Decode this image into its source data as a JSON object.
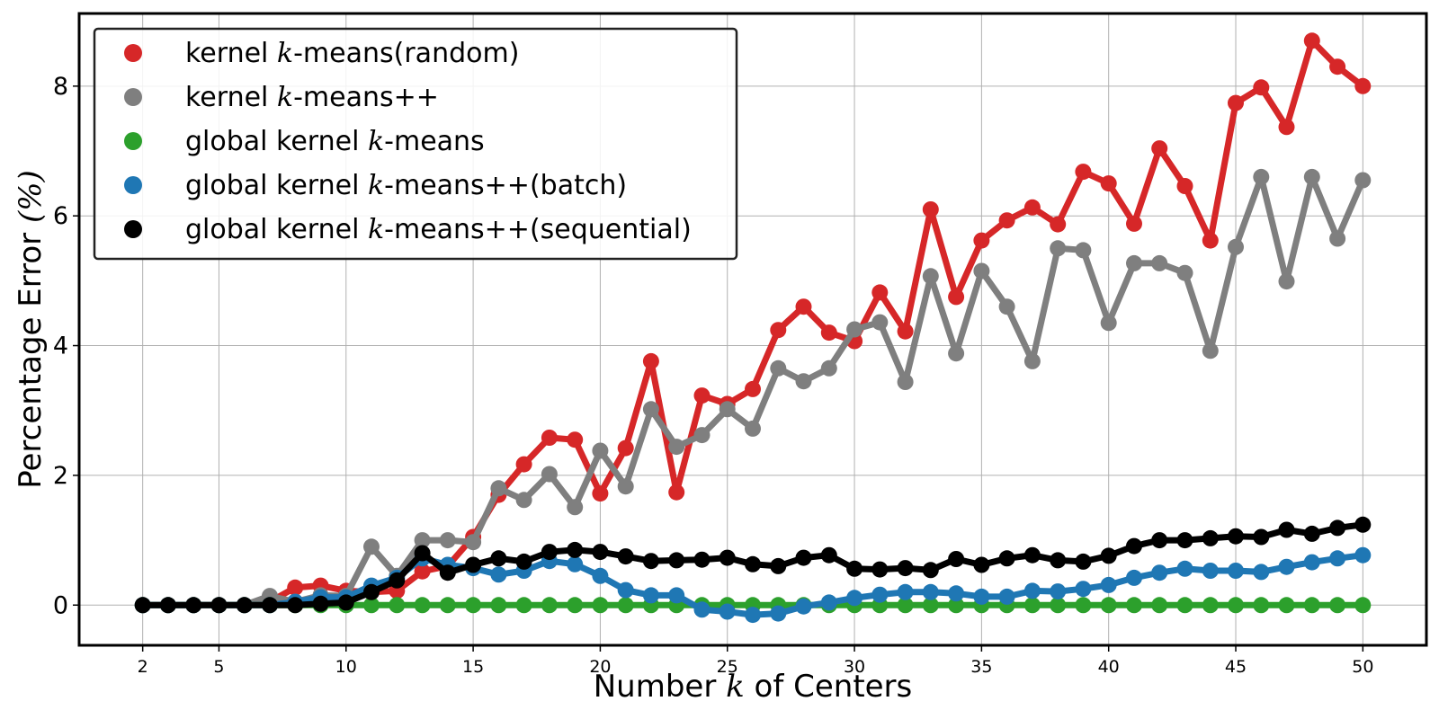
{
  "chart_data": {
    "type": "line",
    "xlabel": "Number k of Centers",
    "ylabel": "Percentage Error (%)",
    "xlim": [
      -0.5,
      52.5
    ],
    "ylim": [
      -0.62,
      9.12
    ],
    "xticks": [
      2,
      5,
      10,
      15,
      20,
      25,
      30,
      35,
      40,
      45,
      50
    ],
    "yticks": [
      0,
      2,
      4,
      6,
      8
    ],
    "grid": true,
    "legend_position": "top-left",
    "x": [
      2,
      3,
      4,
      5,
      6,
      7,
      8,
      9,
      10,
      11,
      12,
      13,
      14,
      15,
      16,
      17,
      18,
      19,
      20,
      21,
      22,
      23,
      24,
      25,
      26,
      27,
      28,
      29,
      30,
      31,
      32,
      33,
      34,
      35,
      36,
      37,
      38,
      39,
      40,
      41,
      42,
      43,
      44,
      45,
      46,
      47,
      48,
      49,
      50
    ],
    "series": [
      {
        "name": "kernel k-means(random)",
        "color": "#d62728",
        "values": [
          0,
          0,
          0,
          0,
          0,
          0.05,
          0.27,
          0.3,
          0.22,
          0.2,
          0.22,
          0.52,
          0.6,
          1.05,
          1.7,
          2.17,
          2.58,
          2.55,
          1.72,
          2.42,
          3.76,
          1.74,
          3.23,
          3.1,
          3.33,
          4.24,
          4.6,
          4.2,
          4.07,
          4.82,
          4.22,
          6.1,
          4.75,
          5.62,
          5.93,
          6.13,
          5.87,
          6.68,
          6.5,
          5.88,
          7.04,
          6.46,
          5.62,
          7.74,
          7.98,
          7.37,
          8.7,
          8.3,
          8.0
        ]
      },
      {
        "name": "kernel k-means++",
        "color": "#7f7f7f",
        "values": [
          0,
          0,
          0,
          0,
          0,
          0.14,
          0.05,
          0.15,
          0.14,
          0.9,
          0.45,
          1.0,
          1.0,
          0.97,
          1.8,
          1.62,
          2.02,
          1.51,
          2.38,
          1.83,
          3.02,
          2.44,
          2.62,
          3.02,
          2.72,
          3.65,
          3.45,
          3.65,
          4.25,
          4.36,
          3.44,
          5.07,
          3.88,
          5.15,
          4.6,
          3.76,
          5.5,
          5.47,
          4.35,
          5.27,
          5.27,
          5.12,
          3.92,
          5.52,
          6.6,
          4.99,
          6.6,
          5.65,
          6.55
        ]
      },
      {
        "name": "global kernel k-means",
        "color": "#2ca02c",
        "values": [
          0,
          0,
          0,
          0,
          0,
          0,
          0,
          0,
          0,
          0,
          0,
          0,
          0,
          0,
          0,
          0,
          0,
          0,
          0,
          0,
          0,
          0,
          0,
          0,
          0,
          0,
          0,
          0,
          0,
          0,
          0,
          0,
          0,
          0,
          0,
          0,
          0,
          0,
          0,
          0,
          0,
          0,
          0,
          0,
          0,
          0,
          0,
          0,
          0
        ]
      },
      {
        "name": "global kernel k-means++(batch)",
        "color": "#1f77b4",
        "values": [
          0,
          0,
          0,
          0,
          0,
          0,
          0.05,
          0.12,
          0.12,
          0.3,
          0.42,
          0.72,
          0.62,
          0.57,
          0.47,
          0.53,
          0.68,
          0.63,
          0.45,
          0.23,
          0.15,
          0.15,
          -0.07,
          -0.1,
          -0.15,
          -0.13,
          -0.02,
          0.04,
          0.11,
          0.16,
          0.2,
          0.2,
          0.18,
          0.13,
          0.13,
          0.22,
          0.21,
          0.25,
          0.31,
          0.42,
          0.5,
          0.56,
          0.53,
          0.53,
          0.51,
          0.59,
          0.66,
          0.72,
          0.77
        ]
      },
      {
        "name": "global kernel k-means++(sequential)",
        "color": "#000000",
        "values": [
          0,
          0,
          0,
          0,
          0,
          0,
          0,
          0.02,
          0.04,
          0.2,
          0.38,
          0.8,
          0.5,
          0.62,
          0.72,
          0.67,
          0.82,
          0.85,
          0.82,
          0.75,
          0.68,
          0.69,
          0.7,
          0.73,
          0.63,
          0.6,
          0.73,
          0.77,
          0.56,
          0.55,
          0.57,
          0.54,
          0.71,
          0.62,
          0.72,
          0.77,
          0.69,
          0.67,
          0.76,
          0.91,
          1.0,
          1.0,
          1.03,
          1.06,
          1.05,
          1.16,
          1.1,
          1.19,
          1.24
        ]
      }
    ],
    "legend": [
      {
        "pre": "kernel ",
        "k": "k",
        "post": "-means(random)"
      },
      {
        "pre": "kernel ",
        "k": "k",
        "post": "-means++"
      },
      {
        "pre": "global kernel ",
        "k": "k",
        "post": "-means"
      },
      {
        "pre": "global kernel ",
        "k": "k",
        "post": "-means++(batch)"
      },
      {
        "pre": "global kernel ",
        "k": "k",
        "post": "-means++(sequential)"
      }
    ],
    "xlabel_parts": {
      "pre": "Number ",
      "k": "k",
      "post": " of Centers"
    },
    "ylabel_parts": {
      "pre": "Percentage Error ",
      "sym": "(%)"
    }
  }
}
